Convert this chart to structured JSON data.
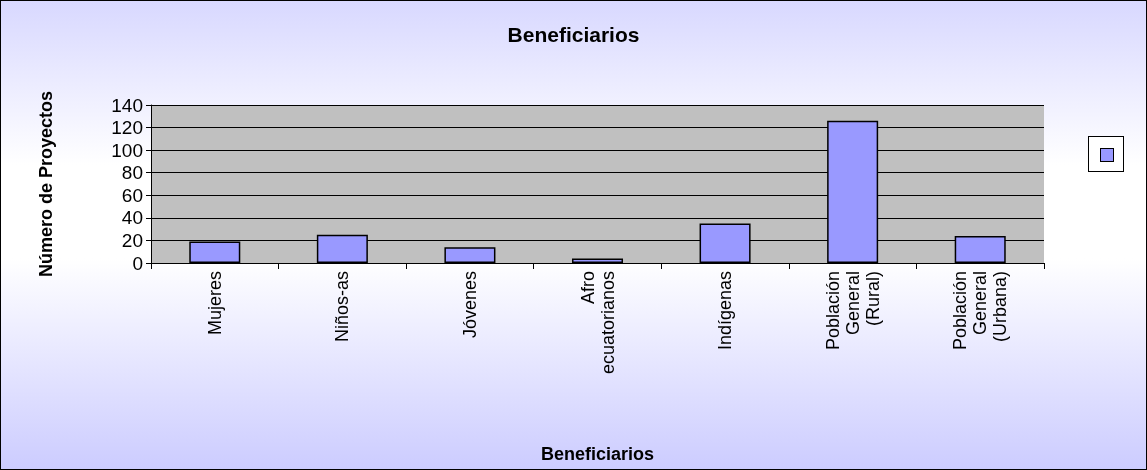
{
  "chart_data": {
    "type": "bar",
    "title": "Beneficiarios",
    "xlabel": "Beneficiarios",
    "ylabel": "Número de Proyectos",
    "categories": [
      "Mujeres",
      "Niños-as",
      "Jóvenes",
      "Afro ecuatorianos",
      "Indígenas",
      "Población General (Rural)",
      "Población General (Urbana)"
    ],
    "series": [
      {
        "color": "#9999ff",
        "values": [
          19,
          25,
          14,
          4,
          35,
          126,
          24
        ]
      }
    ],
    "ylim": [
      0,
      140
    ],
    "yticks": [
      0,
      20,
      40,
      60,
      80,
      100,
      120,
      140
    ],
    "grid": "y"
  }
}
